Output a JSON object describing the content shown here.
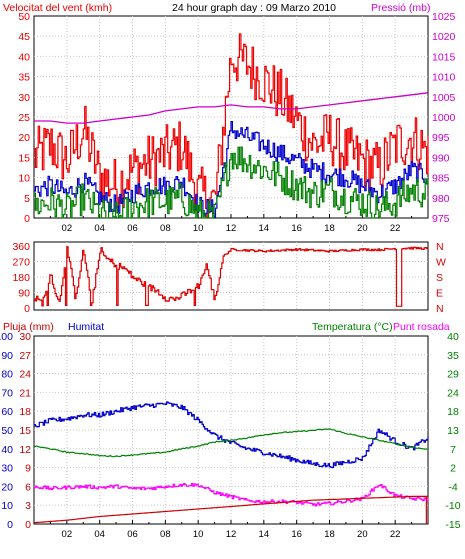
{
  "colors": {
    "wind": "#ee0000",
    "wind_avg": "#0000cc",
    "gust_low": "#008000",
    "pressure": "#cc00cc",
    "direction": "#dd0000",
    "humidity": "#0000cc",
    "temperature": "#008000",
    "dewpoint": "#ff00ff",
    "rain": "#cc0000",
    "grid": "#c8c8c8",
    "axis": "#000000"
  },
  "header": {
    "left": "Velocitat del vent (kmh)",
    "center": "24 hour graph day : 09 Marzo 2010",
    "right": "Pressió (mb)"
  },
  "lower_header": {
    "rain": "Pluja (mm)",
    "humidity": "Humitat",
    "temperature": "Temperatura (°C)",
    "dew": "Punt rosada"
  },
  "direction_labels": [
    "N",
    "W",
    "S",
    "E",
    "N"
  ],
  "chart_data": [
    {
      "type": "line",
      "title": "24 hour graph day : 09 Marzo 2010",
      "xlabel": "",
      "x_ticks": [
        "02",
        "04",
        "06",
        "08",
        "10",
        "12",
        "14",
        "16",
        "18",
        "20",
        "22"
      ],
      "y_left_label": "Velocitat del vent (kmh)",
      "y_left_ticks": [
        "0",
        "5",
        "10",
        "15",
        "20",
        "25",
        "30",
        "35",
        "40",
        "45",
        "50"
      ],
      "ylim_left": [
        0,
        50
      ],
      "y_right_label": "Pressió (mb)",
      "y_right_ticks": [
        "975",
        "980",
        "985",
        "990",
        "995",
        "1000",
        "1005",
        "1010",
        "1015",
        "1020",
        "1025"
      ],
      "ylim_right": [
        975,
        1025
      ],
      "x": [
        0,
        1,
        2,
        3,
        4,
        5,
        6,
        7,
        8,
        9,
        10,
        11,
        12,
        13,
        14,
        15,
        16,
        17,
        18,
        19,
        20,
        21,
        22,
        23,
        24
      ],
      "series": [
        {
          "name": "Velocitat del vent",
          "axis": "left",
          "values": [
            15,
            18,
            14,
            22,
            10,
            8,
            12,
            14,
            16,
            18,
            6,
            4,
            40,
            38,
            34,
            30,
            24,
            18,
            20,
            16,
            14,
            12,
            18,
            20,
            16
          ]
        },
        {
          "name": "",
          "axis": "left",
          "values": [
            7,
            8,
            6,
            9,
            5,
            3,
            6,
            8,
            8,
            9,
            3,
            2,
            22,
            20,
            18,
            16,
            14,
            12,
            11,
            10,
            8,
            6,
            8,
            12,
            10
          ]
        },
        {
          "name": "",
          "axis": "left",
          "values": [
            3,
            4,
            2,
            5,
            1,
            0,
            3,
            4,
            4,
            5,
            1,
            0,
            16,
            14,
            12,
            10,
            8,
            6,
            7,
            5,
            4,
            2,
            4,
            7,
            6
          ]
        },
        {
          "name": "Pressió",
          "axis": "right",
          "values": [
            999,
            999,
            998.5,
            998.5,
            999,
            999.5,
            1000,
            1000.5,
            1001.5,
            1002,
            1002.5,
            1002.5,
            1003,
            1002.5,
            1002.5,
            1002,
            1002,
            1002.5,
            1003,
            1003.5,
            1004,
            1004.5,
            1005,
            1005.5,
            1006
          ]
        }
      ]
    },
    {
      "type": "line",
      "title": "",
      "xlabel": "",
      "x_ticks": [],
      "y_left_ticks": [
        "0",
        "90",
        "180",
        "270",
        "360"
      ],
      "ylim_left": [
        0,
        360
      ],
      "y_right_ticks": [
        "N",
        "W",
        "S",
        "E",
        "N"
      ],
      "x": [
        0,
        0.5,
        1,
        1.5,
        2,
        2.5,
        3,
        3.5,
        4,
        4.5,
        5,
        5.5,
        6,
        6.5,
        7,
        7.5,
        8,
        8.5,
        9,
        9.5,
        10,
        10.5,
        11,
        11.5,
        12,
        13,
        14,
        15,
        16,
        17,
        18,
        19,
        20,
        21,
        22,
        23,
        24
      ],
      "series": [
        {
          "name": "",
          "values": [
            60,
            30,
            200,
            20,
            350,
            60,
            340,
            30,
            320,
            280,
            250,
            230,
            180,
            150,
            120,
            100,
            60,
            50,
            70,
            100,
            130,
            250,
            40,
            300,
            340,
            335,
            330,
            335,
            340,
            335,
            330,
            335,
            340,
            338,
            345,
            348,
            345
          ]
        }
      ]
    },
    {
      "type": "line",
      "title": "",
      "xlabel": "",
      "x_ticks": [
        "02",
        "04",
        "06",
        "08",
        "10",
        "12",
        "14",
        "16",
        "18",
        "20",
        "22"
      ],
      "y_left_label": "Pluja (mm)",
      "y_rain_ticks": [
        "0",
        "3",
        "6",
        "9",
        "12",
        "15",
        "18",
        "21",
        "24",
        "27",
        "30"
      ],
      "ylim_rain": [
        0,
        30
      ],
      "y_humidity_label": "Humitat",
      "y_humidity_ticks": [
        "0",
        "10",
        "20",
        "30",
        "40",
        "50",
        "60",
        "70",
        "80",
        "90",
        "100"
      ],
      "ylim_humidity": [
        0,
        100
      ],
      "y_right_label": "Temperatura (°C)",
      "y_temp_ticks": [
        "-15",
        "-10",
        "-4",
        "2",
        "7",
        "13",
        "18",
        "24",
        "29",
        "35",
        "40"
      ],
      "ylim_temp": [
        -15,
        40
      ],
      "x": [
        0,
        1,
        2,
        3,
        4,
        5,
        6,
        7,
        8,
        9,
        10,
        11,
        12,
        13,
        14,
        15,
        16,
        17,
        18,
        19,
        20,
        21,
        22,
        23,
        24
      ],
      "series": [
        {
          "name": "Humitat",
          "axis": "humidity",
          "values": [
            52,
            55,
            56,
            58,
            58,
            60,
            62,
            63,
            64,
            62,
            55,
            47,
            43,
            40,
            38,
            36,
            34,
            32,
            31,
            33,
            35,
            50,
            44,
            40,
            46
          ]
        },
        {
          "name": "Temperatura (°C)",
          "axis": "temp",
          "values": [
            7.8,
            7,
            6,
            5.6,
            5,
            4.8,
            5.2,
            5.6,
            6,
            7,
            7.8,
            9,
            9.5,
            10.2,
            11.1,
            11.7,
            12,
            12.4,
            12.8,
            11.5,
            10.5,
            9.5,
            8.5,
            7.5,
            6.8
          ]
        },
        {
          "name": "Punt rosada",
          "axis": "temp",
          "values": [
            -4,
            -4.6,
            -4.3,
            -4,
            -4.3,
            -4,
            -4.6,
            -4.6,
            -4,
            -3.5,
            -3.6,
            -5.8,
            -7,
            -8.2,
            -8.5,
            -8.4,
            -8.6,
            -9.3,
            -9,
            -8.3,
            -7.6,
            -3.4,
            -6.7,
            -7.6,
            -7.8
          ]
        },
        {
          "name": "Pluja (mm)",
          "axis": "rain",
          "values": [
            0.2,
            0.4,
            0.6,
            0.9,
            1.2,
            1.4,
            1.6,
            1.8,
            2,
            2.2,
            2.4,
            2.6,
            2.8,
            3,
            3.2,
            3.4,
            3.6,
            3.8,
            3.9,
            4,
            4.1,
            4.2,
            4.3,
            4.4,
            4.4
          ]
        }
      ]
    }
  ]
}
